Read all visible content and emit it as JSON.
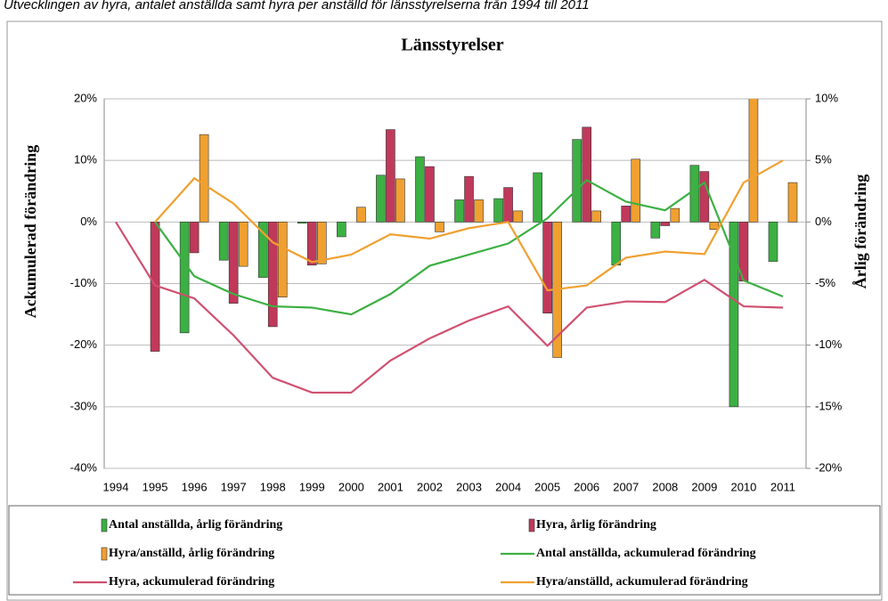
{
  "chart_data": {
    "type": "bar-line",
    "subtitle": "Utvecklingen av hyra, antalet anställda samt hyra per anställd för länsstyrelserna från 1994 till 2011",
    "title": "Länsstyrelser",
    "ylabel": "Ackumulerad förändring",
    "y2label": "Årlig förändring",
    "categories": [
      "1994",
      "1995",
      "1996",
      "1997",
      "1998",
      "1999",
      "2000",
      "2001",
      "2002",
      "2003",
      "2004",
      "2005",
      "2006",
      "2007",
      "2008",
      "2009",
      "2010",
      "2011"
    ],
    "ylim": [
      -40,
      20
    ],
    "yticks": [
      {
        "value": -40,
        "label": "-40%"
      },
      {
        "value": -30,
        "label": "-30%"
      },
      {
        "value": -20,
        "label": "-20%"
      },
      {
        "value": -10,
        "label": "-10%"
      },
      {
        "value": 0,
        "label": "0%"
      },
      {
        "value": 10,
        "label": "10%"
      },
      {
        "value": 20,
        "label": "20%"
      }
    ],
    "y2lim": [
      -20,
      10
    ],
    "y2ticks": [
      {
        "value": -20,
        "label": "-20%"
      },
      {
        "value": -15,
        "label": "-15%"
      },
      {
        "value": -10,
        "label": "-10%"
      },
      {
        "value": -5,
        "label": "-5%"
      },
      {
        "value": 0,
        "label": "0%"
      },
      {
        "value": 5,
        "label": "5%"
      },
      {
        "value": 10,
        "label": "10%"
      }
    ],
    "grid": true,
    "series": [
      {
        "name": "Antal anställda, årlig förändring",
        "type": "bar",
        "axis": "y2",
        "color": "#3cb043",
        "values": [
          null,
          null,
          -9.0,
          -3.1,
          -4.5,
          -0.1,
          -1.2,
          3.8,
          5.3,
          1.8,
          1.9,
          4.0,
          6.7,
          -3.5,
          -1.3,
          4.6,
          -15.0,
          -3.2
        ]
      },
      {
        "name": "Hyra, årlig förändring",
        "type": "bar",
        "axis": "y2",
        "color": "#c0395a",
        "values": [
          null,
          -10.5,
          -2.5,
          -6.6,
          -8.5,
          -3.5,
          null,
          7.5,
          4.5,
          3.7,
          2.8,
          -7.4,
          7.7,
          1.3,
          -0.3,
          4.1,
          -4.8,
          0
        ]
      },
      {
        "name": "Hyra/anställd, årlig förändring",
        "type": "bar",
        "axis": "y2",
        "color": "#f0a030",
        "values": [
          null,
          null,
          7.1,
          -3.6,
          -6.1,
          -3.4,
          1.2,
          3.5,
          -0.8,
          1.8,
          0.9,
          -11.0,
          0.9,
          5.1,
          1.1,
          -0.6,
          11,
          3.2
        ]
      },
      {
        "name": "Antal anställda, ackumulerad förändring",
        "type": "line",
        "color": "#3cb043",
        "values": [
          null,
          0,
          -8.8,
          -11.7,
          -13.7,
          -13.9,
          -15.0,
          -11.7,
          -7.1,
          -5.3,
          -3.5,
          0.6,
          6.8,
          3.3,
          1.9,
          6.4,
          -9.5,
          -12.1
        ]
      },
      {
        "name": "Hyra, ackumulerad förändring",
        "type": "line",
        "color": "#d05070",
        "values": [
          0,
          -10.3,
          -12.4,
          -18.4,
          -25.3,
          -27.7,
          -27.7,
          -22.5,
          -18.9,
          -16.0,
          -13.7,
          -20.1,
          -13.9,
          -12.9,
          -13.0,
          -9.4,
          -13.7,
          -13.9
        ]
      },
      {
        "name": "Hyra/anställd, ackumulerad förändring",
        "type": "line",
        "color": "#f0a030",
        "values": [
          null,
          0,
          7.1,
          3.0,
          -3.3,
          -6.5,
          -5.3,
          -2.0,
          -2.7,
          -1.0,
          0,
          -11.1,
          -10.3,
          -5.8,
          -4.8,
          -5.2,
          6.4,
          10.0
        ]
      }
    ]
  }
}
